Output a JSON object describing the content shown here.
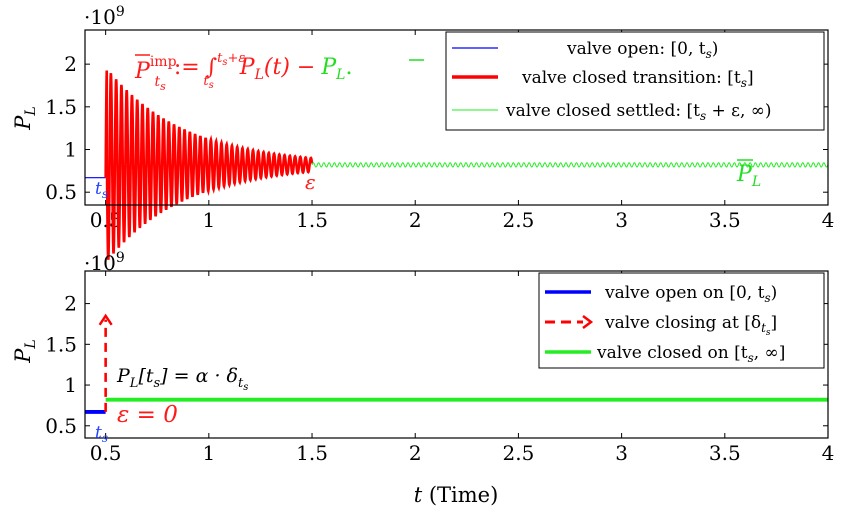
{
  "chart_data": [
    {
      "type": "line",
      "multiplier": "·10",
      "multiplier_exp": "9",
      "ylabel": "P",
      "ylabel_sub": "L",
      "xlim": [
        0.4,
        4
      ],
      "ylim": [
        0.35,
        2.4
      ],
      "xticks": [
        0.5,
        1,
        1.5,
        2,
        2.5,
        3,
        3.5,
        4
      ],
      "xtick_labels": [
        "0.5",
        "1",
        "1.5",
        "2",
        "2.5",
        "3",
        "3.5",
        "4"
      ],
      "yticks": [
        0.5,
        1,
        1.5,
        2
      ],
      "ytick_labels": [
        "0.5",
        "1",
        "1.5",
        "2"
      ],
      "legend_position": "top-right",
      "series": [
        {
          "name": "valve open: [0, t_s)",
          "color": "#0000ff",
          "style": "thin",
          "x": [
            0.4,
            0.5
          ],
          "y": [
            0.67,
            0.67
          ]
        },
        {
          "name": "valve closed transition: [t_s]",
          "color": "#ff0000",
          "style": "oscillation",
          "t_start": 0.5,
          "t_end": 1.5,
          "peak": 1.97,
          "trough": 0.34,
          "settle": 0.82,
          "final_amp": 0.08,
          "period": 0.0255
        },
        {
          "name": "valve closed settled: [t_s + ε, ∞)",
          "color": "#22ee22",
          "style": "oscillation",
          "t_start": 1.5,
          "t_end": 4,
          "settle": 0.82,
          "amp": 0.025,
          "period": 0.0255
        }
      ],
      "annotations": {
        "formula_lhs": "P",
        "formula_sup": "imp",
        "formula_sub": "t",
        "formula_sub_sub": "s",
        "formula_assign": ":=",
        "formula_int": "∫",
        "formula_upper": "t",
        "formula_upper_sub": "s",
        "formula_upper_rest": "+ε",
        "formula_lower": "t",
        "formula_lower_sub": "s",
        "formula_rhs": "P",
        "formula_rhs_sub": "L",
        "formula_rhs_arg": "(t) −",
        "formula_end": "P",
        "formula_end_sub": "L",
        "formula_dot": ".",
        "ts_label": "t",
        "ts_label_sub": "s",
        "eps_label": "ε",
        "pl_bar_label": "P",
        "pl_bar_sub": "L"
      },
      "legend_labels": [
        "valve open: [0, t",
        "valve closed transition: [t",
        "valve closed settled: [t"
      ],
      "legend_suffix": [
        "s",
        ")",
        "s",
        "]",
        "s",
        " + ε, ∞)"
      ]
    },
    {
      "type": "line",
      "multiplier": "·10",
      "multiplier_exp": "9",
      "ylabel": "P",
      "ylabel_sub": "L",
      "xlabel": "t (Time)",
      "xlabel_var": "t",
      "xlabel_rest": " (Time)",
      "xlim": [
        0.4,
        4
      ],
      "ylim": [
        0.35,
        2.4
      ],
      "xticks": [
        0.5,
        1,
        1.5,
        2,
        2.5,
        3,
        3.5,
        4
      ],
      "xtick_labels": [
        "0.5",
        "1",
        "1.5",
        "2",
        "2.5",
        "3",
        "3.5",
        "4"
      ],
      "yticks": [
        0.5,
        1,
        1.5,
        2
      ],
      "ytick_labels": [
        "0.5",
        "1",
        "1.5",
        "2"
      ],
      "legend_position": "top-right",
      "series": [
        {
          "name": "valve open on [0, t_s)",
          "color": "#0000ff",
          "style": "thick",
          "x": [
            0.4,
            0.5
          ],
          "y": [
            0.67,
            0.67
          ]
        },
        {
          "name": "valve closing at [δ_{t_s}]",
          "color": "#ff0000",
          "style": "dashed-arrow",
          "x": [
            0.5,
            0.5
          ],
          "y": [
            0.67,
            1.85
          ]
        },
        {
          "name": "valve closed on [t_s, ∞]",
          "color": "#22ee22",
          "style": "thick",
          "x": [
            0.5,
            4
          ],
          "y": [
            0.82,
            0.82
          ]
        }
      ],
      "annotations": {
        "impulse_lhs": "P",
        "impulse_lhs_sub": "L",
        "impulse_arg": "[t",
        "impulse_arg_sub": "s",
        "impulse_eq": "] = α · δ",
        "impulse_delta_sub": "t",
        "impulse_delta_subsub": "s",
        "eps_zero": "ε = 0",
        "ts_label": "t",
        "ts_label_sub": "s"
      },
      "legend_labels": [
        "valve open on [0, t",
        "valve closing at [δ",
        "valve closed on [t"
      ],
      "legend_suffix": [
        "s",
        ")",
        "t",
        "s",
        "]",
        "s",
        ", ∞]"
      ]
    }
  ]
}
